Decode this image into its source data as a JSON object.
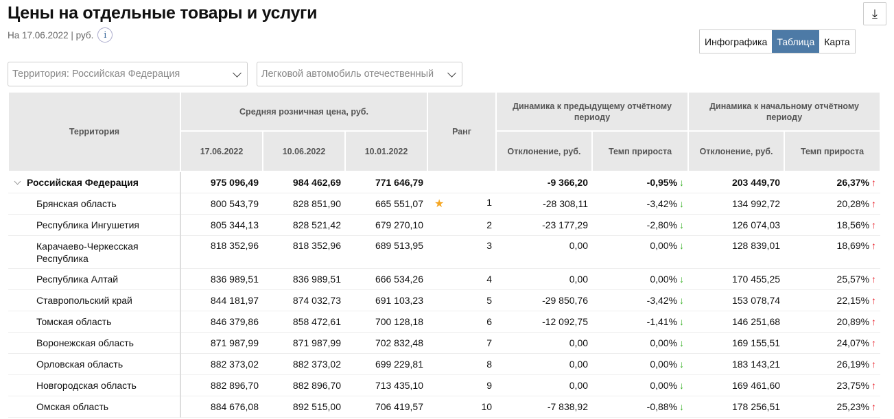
{
  "title": "Цены на отдельные товары и услуги",
  "subtitle": "На 17.06.2022 | руб.",
  "info_icon": "i",
  "download_icon": "⤓",
  "view_tabs": [
    {
      "label": "Инфографика",
      "active": false
    },
    {
      "label": "Таблица",
      "active": true
    },
    {
      "label": "Карта",
      "active": false
    }
  ],
  "filters": {
    "territory": "Территория: Российская  Федерация",
    "product": "Легковой автомобиль отечественный"
  },
  "colors": {
    "accent": "#4d7aa6",
    "down": "#3bb32a",
    "up": "#e8202a",
    "star": "#f5a623",
    "header_bg": "#e8e8e8"
  },
  "table": {
    "headers": {
      "territory": "Территория",
      "avg_price": "Средняя розничная цена, руб.",
      "dates": [
        "17.06.2022",
        "10.06.2022",
        "10.01.2022"
      ],
      "rank": "Ранг",
      "dyn_prev": "Динамика к предыдущему отчётному периоду",
      "dyn_start": "Динамика к начальному отчётному периоду",
      "deviation": "Отклонение, руб.",
      "rate": "Темп прироста"
    },
    "total": {
      "name": "Российская Федерация",
      "p1": "975 096,49",
      "p2": "984 462,69",
      "p3": "771 646,79",
      "rank": "",
      "dev_prev": "-9 366,20",
      "rate_prev": "-0,95%",
      "dev_start": "203 449,70",
      "rate_start": "26,37%"
    },
    "rows": [
      {
        "name": "Брянская область",
        "p1": "800 543,79",
        "p2": "828 851,90",
        "p3": "665 551,07",
        "rank": "1",
        "star": true,
        "dev_prev": "-28 308,11",
        "rate_prev": "-3,42%",
        "dev_start": "134 992,72",
        "rate_start": "20,28%"
      },
      {
        "name": "Республика Ингушетия",
        "p1": "805 344,13",
        "p2": "828 521,42",
        "p3": "679 270,10",
        "rank": "2",
        "dev_prev": "-23 177,29",
        "rate_prev": "-2,80%",
        "dev_start": "126 074,03",
        "rate_start": "18,56%"
      },
      {
        "name": "Карачаево-Черкесская Республика",
        "p1": "818 352,96",
        "p2": "818 352,96",
        "p3": "689 513,95",
        "rank": "3",
        "dev_prev": "0,00",
        "rate_prev": "0,00%",
        "dev_start": "128 839,01",
        "rate_start": "18,69%"
      },
      {
        "name": "Республика Алтай",
        "p1": "836 989,51",
        "p2": "836 989,51",
        "p3": "666 534,26",
        "rank": "4",
        "dev_prev": "0,00",
        "rate_prev": "0,00%",
        "dev_start": "170 455,25",
        "rate_start": "25,57%"
      },
      {
        "name": "Ставропольский край",
        "p1": "844 181,97",
        "p2": "874 032,73",
        "p3": "691 103,23",
        "rank": "5",
        "dev_prev": "-29 850,76",
        "rate_prev": "-3,42%",
        "dev_start": "153 078,74",
        "rate_start": "22,15%"
      },
      {
        "name": "Томская область",
        "p1": "846 379,86",
        "p2": "858 472,61",
        "p3": "700 128,18",
        "rank": "6",
        "dev_prev": "-12 092,75",
        "rate_prev": "-1,41%",
        "dev_start": "146 251,68",
        "rate_start": "20,89%"
      },
      {
        "name": "Воронежская область",
        "p1": "871 987,99",
        "p2": "871 987,99",
        "p3": "702 832,48",
        "rank": "7",
        "dev_prev": "0,00",
        "rate_prev": "0,00%",
        "dev_start": "169 155,51",
        "rate_start": "24,07%"
      },
      {
        "name": "Орловская область",
        "p1": "882 373,02",
        "p2": "882 373,02",
        "p3": "699 229,81",
        "rank": "8",
        "dev_prev": "0,00",
        "rate_prev": "0,00%",
        "dev_start": "183 143,21",
        "rate_start": "26,19%"
      },
      {
        "name": "Новгородская область",
        "p1": "882 896,70",
        "p2": "882 896,70",
        "p3": "713 435,10",
        "rank": "9",
        "dev_prev": "0,00",
        "rate_prev": "0,00%",
        "dev_start": "169 461,60",
        "rate_start": "23,75%"
      },
      {
        "name": "Омская область",
        "p1": "884 676,08",
        "p2": "892 515,00",
        "p3": "706 419,57",
        "rank": "10",
        "dev_prev": "-7 838,92",
        "rate_prev": "-0,88%",
        "dev_start": "178 256,51",
        "rate_start": "25,23%"
      }
    ]
  }
}
